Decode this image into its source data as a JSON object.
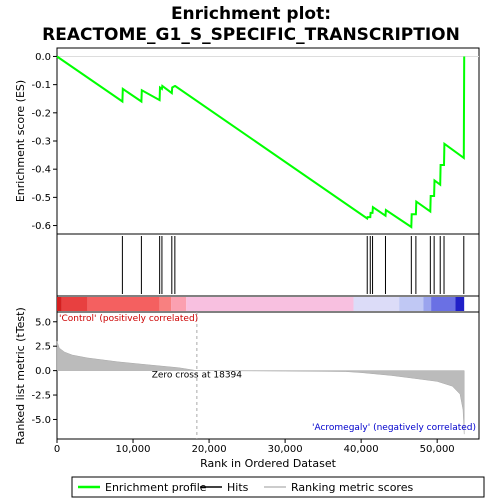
{
  "chart_data": {
    "type": "line",
    "title_line1": "Enrichment plot:",
    "title_line2": "REACTOME_G1_S_SPECIFIC_TRANSCRIPTION",
    "es_panel": {
      "ylabel": "Enrichment score (ES)",
      "ylim": [
        -0.63,
        0.03
      ],
      "yticks": [
        0.0,
        -0.1,
        -0.2,
        -0.3,
        -0.4,
        -0.5,
        -0.6
      ],
      "ytick_labels": [
        "0.0",
        "-0.1",
        "-0.2",
        "-0.3",
        "-0.4",
        "-0.5",
        "-0.6"
      ],
      "series_name": "Enrichment profile",
      "color": "#00ff00",
      "x": [
        0,
        8600,
        8650,
        11100,
        11150,
        13500,
        13550,
        13800,
        13850,
        15100,
        15150,
        15500,
        15550,
        40800,
        40850,
        41200,
        41250,
        41500,
        41550,
        43200,
        43250,
        46600,
        46650,
        47200,
        47250,
        49100,
        49150,
        49600,
        49650,
        50400,
        50450,
        50900,
        50950,
        53500,
        53550
      ],
      "y": [
        0.0,
        -0.16,
        -0.115,
        -0.16,
        -0.12,
        -0.155,
        -0.11,
        -0.115,
        -0.105,
        -0.13,
        -0.11,
        -0.105,
        -0.105,
        -0.575,
        -0.57,
        -0.57,
        -0.555,
        -0.555,
        -0.535,
        -0.565,
        -0.545,
        -0.605,
        -0.56,
        -0.56,
        -0.515,
        -0.55,
        -0.495,
        -0.495,
        -0.44,
        -0.455,
        -0.385,
        -0.385,
        -0.31,
        -0.36,
        0.0
      ]
    },
    "hits": [
      8600,
      11100,
      13500,
      13800,
      15100,
      15500,
      40800,
      41200,
      41500,
      43200,
      46600,
      47200,
      49100,
      49600,
      50400,
      50900,
      53500
    ],
    "metric_panel": {
      "ylabel": "Ranked list metric (tTest)",
      "ylim": [
        -7.0,
        6.0
      ],
      "yticks": [
        5.0,
        2.5,
        0.0,
        -2.5,
        -5.0
      ],
      "ytick_labels": [
        "5.0",
        "2.5",
        "0.0",
        "-2.5",
        "-5.0"
      ],
      "x": [
        0,
        300,
        1000,
        2000,
        4000,
        8000,
        12000,
        16000,
        18394,
        22000,
        30000,
        38000,
        40000,
        44000,
        47000,
        50000,
        52000,
        53000,
        53400,
        53550
      ],
      "y": [
        3.0,
        2.3,
        1.9,
        1.6,
        1.3,
        0.9,
        0.6,
        0.3,
        0.0,
        -0.02,
        -0.05,
        -0.1,
        -0.2,
        -0.5,
        -0.8,
        -1.1,
        -1.6,
        -2.4,
        -4.0,
        -6.5
      ],
      "zero_cross_label": "Zero cross at 18394",
      "zero_cross_x": 18394,
      "positive_label": "'Control' (positively correlated)",
      "negative_label": "'Acromegaly' (negatively correlated)"
    },
    "xlabel": "Rank in Ordered Dataset",
    "xlim": [
      0,
      55500
    ],
    "xticks": [
      0,
      10000,
      20000,
      30000,
      40000,
      50000
    ],
    "xtick_labels": [
      "0",
      "10,000",
      "20,000",
      "30,000",
      "40,000",
      "50,000"
    ],
    "heat_bar_segments": [
      {
        "from": 0,
        "to": 600,
        "color": "#d42020"
      },
      {
        "from": 600,
        "to": 4000,
        "color": "#e84040"
      },
      {
        "from": 4000,
        "to": 13500,
        "color": "#f46060"
      },
      {
        "from": 13500,
        "to": 15000,
        "color": "#f88080"
      },
      {
        "from": 15000,
        "to": 17000,
        "color": "#fba0b0"
      },
      {
        "from": 17000,
        "to": 39000,
        "color": "#f8c0e0"
      },
      {
        "from": 39000,
        "to": 45000,
        "color": "#dcdcf8"
      },
      {
        "from": 45000,
        "to": 48200,
        "color": "#c0c8f4"
      },
      {
        "from": 48200,
        "to": 49200,
        "color": "#9aa4ee"
      },
      {
        "from": 49200,
        "to": 52400,
        "color": "#6a70e4"
      },
      {
        "from": 52400,
        "to": 53550,
        "color": "#2020c8"
      }
    ],
    "legend": [
      {
        "label": "Enrichment profile",
        "color": "#00ff00"
      },
      {
        "label": "Hits",
        "color": "#000000"
      },
      {
        "label": "Ranking metric scores",
        "color": "#bbbbbb"
      }
    ]
  }
}
